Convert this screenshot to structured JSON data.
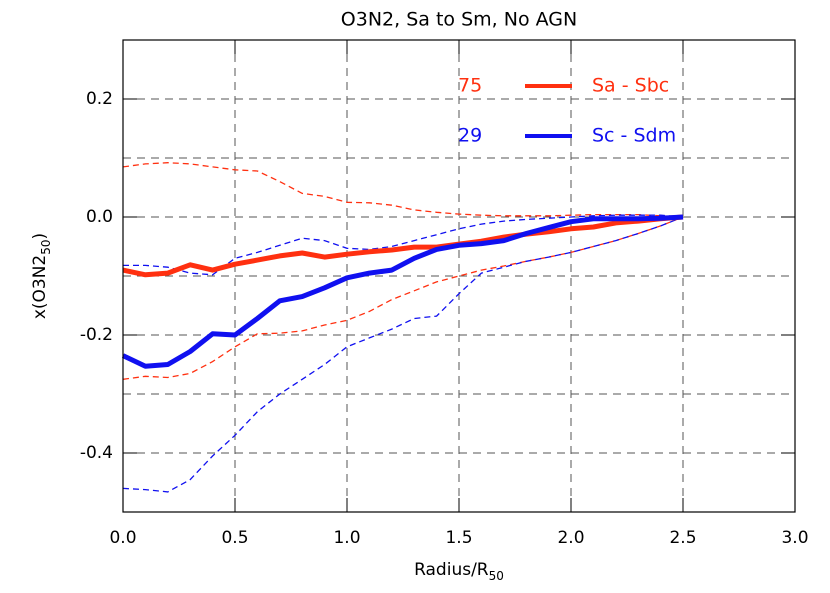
{
  "chart_data": {
    "type": "line",
    "title": "O3N2, Sa to Sm, No AGN",
    "xlabel": {
      "main": "Radius/R",
      "sub": "50"
    },
    "ylabel": {
      "main": "x(O3N2",
      "sub": "50",
      "end": ")"
    },
    "xlim": [
      0,
      3
    ],
    "ylim": [
      -0.5,
      0.3
    ],
    "xticks": [
      {
        "value": 0,
        "label": "0.0"
      },
      0.5,
      {
        "value": 1,
        "label": "1.0"
      },
      1.5,
      {
        "value": 2,
        "label": "2.0"
      },
      2.5,
      {
        "value": 3,
        "label": "3.0"
      }
    ],
    "yticks": [
      -0.4,
      -0.2,
      {
        "value": 0,
        "label": "0.0"
      },
      0.2
    ],
    "ygrid": [
      -0.4,
      -0.3,
      -0.2,
      -0.1,
      0,
      0.1,
      0.2
    ],
    "xgrid": [
      0.5,
      1,
      1.5,
      2,
      2.5
    ],
    "x": [
      0,
      0.1,
      0.2,
      0.3,
      0.4,
      0.5,
      0.6,
      0.7,
      0.8,
      0.9,
      1.0,
      1.1,
      1.2,
      1.3,
      1.4,
      1.5,
      1.6,
      1.7,
      1.8,
      1.9,
      2.0,
      2.1,
      2.2,
      2.3,
      2.4,
      2.5
    ],
    "series": [
      {
        "name": "Sa - Sbc",
        "count": 75,
        "color": "#ff3010",
        "values": [
          -0.09,
          -0.098,
          -0.095,
          -0.081,
          -0.09,
          -0.08,
          -0.073,
          -0.066,
          -0.061,
          -0.068,
          -0.063,
          -0.059,
          -0.056,
          -0.051,
          -0.051,
          -0.046,
          -0.041,
          -0.034,
          -0.029,
          -0.025,
          -0.02,
          -0.017,
          -0.01,
          -0.007,
          -0.003,
          0
        ],
        "upper": [
          0.085,
          0.09,
          0.092,
          0.09,
          0.085,
          0.08,
          0.078,
          0.06,
          0.04,
          0.035,
          0.025,
          0.024,
          0.02,
          0.012,
          0.008,
          0.005,
          0.003,
          0.002,
          0.002,
          0.002,
          0.003,
          0.004,
          0.004,
          0.004,
          0.002,
          0
        ],
        "lower": [
          -0.275,
          -0.27,
          -0.272,
          -0.265,
          -0.245,
          -0.22,
          -0.198,
          -0.197,
          -0.193,
          -0.183,
          -0.175,
          -0.16,
          -0.14,
          -0.125,
          -0.11,
          -0.1,
          -0.09,
          -0.083,
          -0.075,
          -0.068,
          -0.06,
          -0.05,
          -0.04,
          -0.028,
          -0.015,
          0
        ]
      },
      {
        "name": "Sc - Sdm",
        "count": 29,
        "color": "#1010f0",
        "values": [
          -0.235,
          -0.253,
          -0.25,
          -0.228,
          -0.198,
          -0.2,
          -0.172,
          -0.142,
          -0.135,
          -0.12,
          -0.103,
          -0.095,
          -0.09,
          -0.07,
          -0.055,
          -0.048,
          -0.045,
          -0.04,
          -0.028,
          -0.018,
          -0.008,
          -0.003,
          -0.003,
          -0.003,
          -0.002,
          0
        ],
        "upper": [
          -0.082,
          -0.082,
          -0.085,
          -0.095,
          -0.098,
          -0.07,
          -0.06,
          -0.048,
          -0.036,
          -0.04,
          -0.053,
          -0.055,
          -0.05,
          -0.04,
          -0.03,
          -0.02,
          -0.012,
          -0.007,
          -0.004,
          -0.002,
          0,
          0.002,
          0.003,
          0.003,
          0.003,
          0
        ],
        "lower": [
          -0.46,
          -0.462,
          -0.466,
          -0.445,
          -0.405,
          -0.37,
          -0.33,
          -0.3,
          -0.275,
          -0.25,
          -0.22,
          -0.205,
          -0.19,
          -0.172,
          -0.168,
          -0.13,
          -0.095,
          -0.085,
          -0.075,
          -0.068,
          -0.06,
          -0.05,
          -0.04,
          -0.028,
          -0.015,
          0
        ]
      }
    ]
  }
}
